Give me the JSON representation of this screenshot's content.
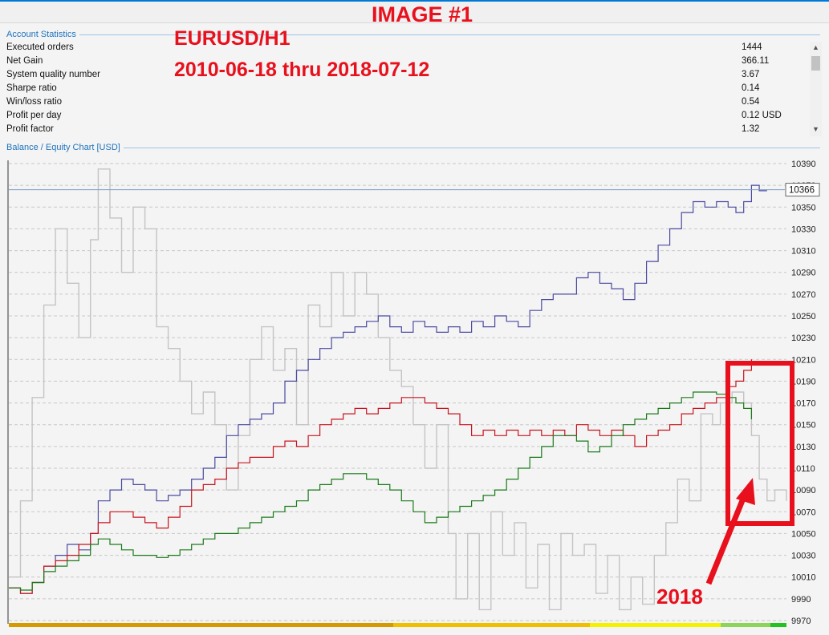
{
  "annotations": {
    "image_label": "IMAGE #1",
    "symbol": "EURUSD/H1",
    "date_range": "2010-06-18 thru 2018-07-12",
    "year_label": "2018",
    "box_color": "#e8101c"
  },
  "account_statistics": {
    "title": "Account Statistics",
    "rows": [
      {
        "label": "Executed orders",
        "value": "1444"
      },
      {
        "label": "Net Gain",
        "value": "366.11"
      },
      {
        "label": "System quality number",
        "value": "3.67"
      },
      {
        "label": "Sharpe ratio",
        "value": "0.14"
      },
      {
        "label": "Win/loss ratio",
        "value": "0.54"
      },
      {
        "label": "Profit per day",
        "value": "0.12 USD"
      },
      {
        "label": "Profit factor",
        "value": "1.32"
      }
    ]
  },
  "chart_title": "Balance / Equity Chart [USD]",
  "chart_data": {
    "type": "line",
    "ylim": [
      9970,
      10390
    ],
    "y_ticks": [
      10390,
      10370,
      10350,
      10330,
      10310,
      10290,
      10270,
      10250,
      10230,
      10210,
      10190,
      10170,
      10150,
      10130,
      10110,
      10090,
      10070,
      10050,
      10030,
      10010,
      9990,
      9970
    ],
    "current_value": "10366",
    "grid": true,
    "xlim": [
      0,
      100
    ],
    "series": [
      {
        "color": "#c4c4c4",
        "x": [
          0,
          1.5,
          3,
          4.5,
          6,
          7.5,
          9,
          10.5,
          11.5,
          13,
          14.5,
          16,
          17.5,
          19,
          20.5,
          22,
          23.5,
          25,
          26.5,
          28,
          29.5,
          31,
          32.5,
          34,
          35.5,
          37,
          38.5,
          40,
          41.5,
          43,
          44.5,
          46,
          47.5,
          49,
          50.5,
          52,
          53.5,
          55,
          56.5,
          57.5,
          59,
          60.5,
          62,
          63.5,
          65,
          66.5,
          68,
          69.5,
          71,
          72.5,
          74,
          75.5,
          77,
          78.5,
          80,
          81.5,
          83,
          84.5,
          86,
          87.5,
          89,
          90.5,
          91.5,
          93,
          94.5,
          95.5,
          96.5,
          97.5,
          98.5,
          100
        ],
        "y": [
          10010,
          10080,
          10175,
          10260,
          10330,
          10280,
          10230,
          10320,
          10385,
          10340,
          10290,
          10350,
          10330,
          10240,
          10220,
          10190,
          10160,
          10180,
          10150,
          10090,
          10140,
          10210,
          10240,
          10200,
          10220,
          10150,
          10260,
          10240,
          10290,
          10250,
          10290,
          10270,
          10230,
          10200,
          10185,
          10150,
          10110,
          10150,
          10050,
          9990,
          10050,
          9980,
          10070,
          10030,
          10060,
          10000,
          10040,
          9980,
          10050,
          10030,
          10040,
          9995,
          10030,
          9980,
          10010,
          9985,
          10030,
          10060,
          10100,
          10080,
          10160,
          10150,
          10170,
          10180,
          10170,
          10140,
          10100,
          10080,
          10090,
          10080
        ]
      },
      {
        "color": "#4b4aa0",
        "x": [
          0,
          1.5,
          3,
          4.5,
          6,
          7.5,
          9,
          10.5,
          11.5,
          13,
          14.5,
          16,
          17.5,
          19,
          20.5,
          22,
          23.5,
          25,
          26.5,
          28,
          29.5,
          31,
          32.5,
          34,
          35.5,
          37,
          38.5,
          40,
          41.5,
          43,
          44.5,
          46,
          47.5,
          49,
          50.5,
          52,
          53.5,
          55,
          56.5,
          58,
          59.5,
          61,
          62.5,
          64,
          65.5,
          67,
          68.5,
          70,
          71.5,
          73,
          74.5,
          76,
          77.5,
          79,
          80.5,
          82,
          83.5,
          85,
          86.5,
          88,
          89.5,
          91,
          92.5,
          93.5,
          94.5,
          95.5,
          96.5,
          97.5
        ],
        "y": [
          10000,
          9995,
          10005,
          10020,
          10030,
          10040,
          10035,
          10050,
          10080,
          10090,
          10100,
          10095,
          10090,
          10080,
          10085,
          10090,
          10100,
          10110,
          10120,
          10140,
          10150,
          10155,
          10160,
          10170,
          10190,
          10200,
          10210,
          10220,
          10230,
          10235,
          10240,
          10245,
          10250,
          10240,
          10235,
          10245,
          10240,
          10235,
          10240,
          10235,
          10245,
          10240,
          10250,
          10245,
          10240,
          10255,
          10265,
          10270,
          10270,
          10285,
          10290,
          10280,
          10275,
          10265,
          10280,
          10300,
          10315,
          10330,
          10345,
          10355,
          10350,
          10355,
          10350,
          10345,
          10355,
          10370,
          10365,
          10365
        ]
      },
      {
        "color": "#c8141e",
        "x": [
          0,
          1.5,
          3,
          4.5,
          6,
          7.5,
          9,
          10.5,
          11.5,
          13,
          14.5,
          16,
          17.5,
          19,
          20.5,
          22,
          23.5,
          25,
          26.5,
          28,
          29.5,
          31,
          32.5,
          34,
          35.5,
          37,
          38.5,
          40,
          41.5,
          43,
          44.5,
          46,
          47.5,
          49,
          50.5,
          52,
          53.5,
          55,
          56.5,
          58,
          59.5,
          61,
          62.5,
          64,
          65.5,
          67,
          68.5,
          70,
          71.5,
          73,
          74.5,
          76,
          77.5,
          79,
          80.5,
          82,
          83.5,
          85,
          86.5,
          88,
          89.5,
          91,
          92.5,
          93.5,
          94.5,
          95.5
        ],
        "y": [
          10000,
          9995,
          10005,
          10020,
          10025,
          10030,
          10040,
          10050,
          10060,
          10070,
          10070,
          10065,
          10060,
          10055,
          10065,
          10075,
          10090,
          10095,
          10100,
          10110,
          10115,
          10120,
          10120,
          10130,
          10135,
          10130,
          10140,
          10150,
          10155,
          10160,
          10165,
          10160,
          10165,
          10170,
          10175,
          10175,
          10170,
          10165,
          10160,
          10150,
          10140,
          10145,
          10140,
          10145,
          10140,
          10145,
          10140,
          10145,
          10140,
          10150,
          10145,
          10140,
          10145,
          10140,
          10130,
          10140,
          10145,
          10150,
          10160,
          10165,
          10170,
          10175,
          10185,
          10190,
          10200,
          10210
        ]
      },
      {
        "color": "#1a7a1a",
        "x": [
          0,
          1.5,
          3,
          4.5,
          6,
          7.5,
          9,
          10.5,
          11.5,
          13,
          14.5,
          16,
          17.5,
          19,
          20.5,
          22,
          23.5,
          25,
          26.5,
          28,
          29.5,
          31,
          32.5,
          34,
          35.5,
          37,
          38.5,
          40,
          41.5,
          43,
          44.5,
          46,
          47.5,
          49,
          50.5,
          52,
          53.5,
          55,
          56.5,
          58,
          59.5,
          61,
          62.5,
          64,
          65.5,
          67,
          68.5,
          70,
          71.5,
          73,
          74.5,
          76,
          77.5,
          79,
          80.5,
          82,
          83.5,
          85,
          86.5,
          88,
          89.5,
          91,
          92.5,
          93.5,
          94.5,
          95.5
        ],
        "y": [
          10000,
          9998,
          10005,
          10015,
          10020,
          10025,
          10030,
          10040,
          10045,
          10040,
          10035,
          10030,
          10030,
          10028,
          10030,
          10035,
          10040,
          10045,
          10050,
          10050,
          10055,
          10060,
          10065,
          10070,
          10075,
          10080,
          10090,
          10095,
          10100,
          10105,
          10105,
          10100,
          10095,
          10090,
          10080,
          10070,
          10060,
          10065,
          10070,
          10075,
          10080,
          10085,
          10090,
          10100,
          10110,
          10120,
          10130,
          10140,
          10140,
          10135,
          10125,
          10130,
          10140,
          10150,
          10155,
          10160,
          10165,
          10170,
          10175,
          10180,
          10180,
          10178,
          10175,
          10170,
          10165,
          10155
        ]
      }
    ]
  },
  "timeline_bar": [
    "#d49a00",
    "#f0c000",
    "#f5f200",
    "#8cd45a",
    "#22c222"
  ]
}
